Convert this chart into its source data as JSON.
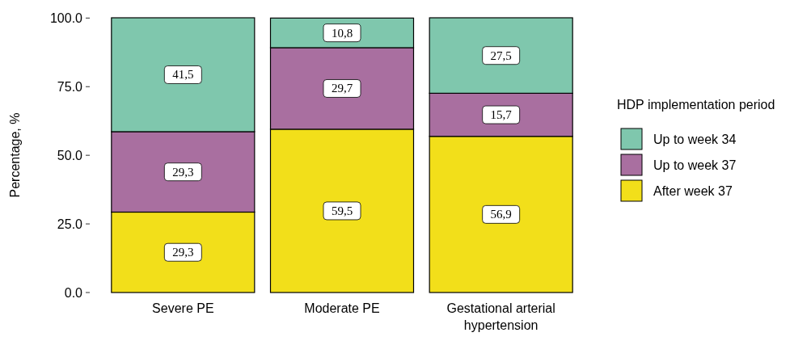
{
  "chart_data": {
    "type": "bar",
    "stacked": true,
    "ylabel": "Percentage, %",
    "legend_title": "HDP implementation period",
    "legend": "right",
    "grid": false,
    "categories": [
      "Severe PE",
      "Moderate PE",
      "Gestational arterial hypertension"
    ],
    "ylim": [
      0,
      100.1
    ],
    "yticks": [
      {
        "value": 0,
        "label": "0.0"
      },
      {
        "value": 25,
        "label": "25.0"
      },
      {
        "value": 50,
        "label": "50.0"
      },
      {
        "value": 75,
        "label": "75.0"
      },
      {
        "value": 100,
        "label": "100.0"
      }
    ],
    "series": [
      {
        "name": "After week 37",
        "color": "#f2df1a",
        "values": [
          29.3,
          59.5,
          56.9
        ],
        "value_labels": [
          "29,3",
          "59,5",
          "56,9"
        ]
      },
      {
        "name": "Up to week 37",
        "color": "#a96fa0",
        "values": [
          29.3,
          29.7,
          15.7
        ],
        "value_labels": [
          "29,3",
          "29,7",
          "15,7"
        ]
      },
      {
        "name": "Up to week 34",
        "color": "#7fc7ad",
        "values": [
          41.5,
          10.8,
          27.5
        ],
        "value_labels": [
          "41,5",
          "10,8",
          "27,5"
        ]
      }
    ]
  }
}
